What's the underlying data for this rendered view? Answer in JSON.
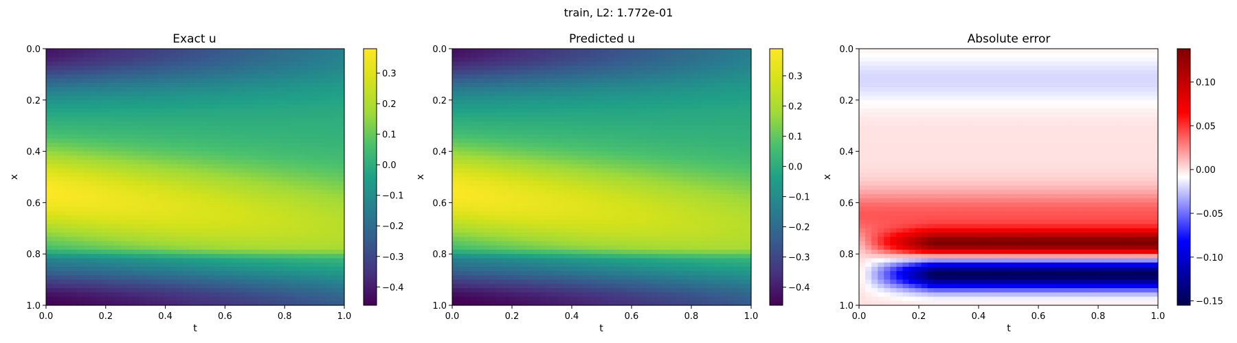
{
  "figure": {
    "suptitle": "train, L2: 1.772e-01"
  },
  "chart_data": [
    {
      "type": "heatmap",
      "title": "Exact u",
      "xlabel": "t",
      "ylabel": "x",
      "xlim": [
        0,
        1
      ],
      "ylim": [
        1,
        0
      ],
      "xticks": [
        "0.0",
        "0.2",
        "0.4",
        "0.6",
        "0.8",
        "1.0"
      ],
      "yticks": [
        "0.0",
        "0.2",
        "0.4",
        "0.6",
        "0.8",
        "1.0"
      ],
      "colormap": "viridis",
      "clim": [
        -0.46,
        0.38
      ],
      "colorbar_ticks": [
        "0.3",
        "0.2",
        "0.1",
        "0.0",
        "−0.1",
        "−0.2",
        "−0.3",
        "−0.4"
      ]
    },
    {
      "type": "heatmap",
      "title": "Predicted u",
      "xlabel": "t",
      "ylabel": "x",
      "xlim": [
        0,
        1
      ],
      "ylim": [
        1,
        0
      ],
      "xticks": [
        "0.0",
        "0.2",
        "0.4",
        "0.6",
        "0.8",
        "1.0"
      ],
      "yticks": [
        "0.0",
        "0.2",
        "0.4",
        "0.6",
        "0.8",
        "1.0"
      ],
      "colormap": "viridis",
      "clim": [
        -0.46,
        0.39
      ],
      "colorbar_ticks": [
        "0.3",
        "0.2",
        "0.1",
        "0.0",
        "−0.1",
        "−0.2",
        "−0.3",
        "−0.4"
      ]
    },
    {
      "type": "heatmap",
      "title": "Absolute error",
      "xlabel": "t",
      "ylabel": "x",
      "xlim": [
        0,
        1
      ],
      "ylim": [
        1,
        0
      ],
      "xticks": [
        "0.0",
        "0.2",
        "0.4",
        "0.6",
        "0.8",
        "1.0"
      ],
      "yticks": [
        "0.0",
        "0.2",
        "0.4",
        "0.6",
        "0.8",
        "1.0"
      ],
      "colormap": "seismic",
      "clim": [
        -0.155,
        0.138
      ],
      "colorbar_ticks": [
        "0.10",
        "0.05",
        "0.00",
        "−0.05",
        "−0.10",
        "−0.15"
      ]
    }
  ]
}
